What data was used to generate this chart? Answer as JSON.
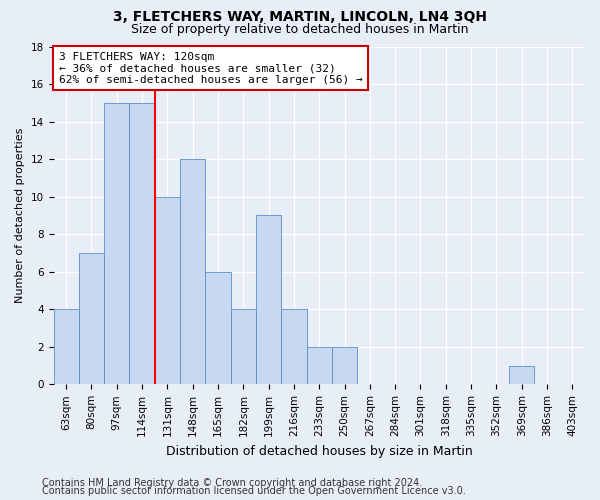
{
  "title": "3, FLETCHERS WAY, MARTIN, LINCOLN, LN4 3QH",
  "subtitle": "Size of property relative to detached houses in Martin",
  "xlabel": "Distribution of detached houses by size in Martin",
  "ylabel": "Number of detached properties",
  "categories": [
    "63sqm",
    "80sqm",
    "97sqm",
    "114sqm",
    "131sqm",
    "148sqm",
    "165sqm",
    "182sqm",
    "199sqm",
    "216sqm",
    "233sqm",
    "250sqm",
    "267sqm",
    "284sqm",
    "301sqm",
    "318sqm",
    "335sqm",
    "352sqm",
    "369sqm",
    "386sqm",
    "403sqm"
  ],
  "values": [
    4,
    7,
    15,
    15,
    10,
    12,
    6,
    4,
    9,
    4,
    2,
    2,
    0,
    0,
    0,
    0,
    0,
    0,
    1,
    0,
    0
  ],
  "bar_color": "#c6d9f0",
  "bar_edge_color": "#5b8dc8",
  "red_line_x": 3.5,
  "annotation_line1": "3 FLETCHERS WAY: 120sqm",
  "annotation_line2": "← 36% of detached houses are smaller (32)",
  "annotation_line3": "62% of semi-detached houses are larger (56) →",
  "annotation_box_color": "white",
  "annotation_box_edge_color": "#cc0000",
  "ylim": [
    0,
    18
  ],
  "yticks": [
    0,
    2,
    4,
    6,
    8,
    10,
    12,
    14,
    16,
    18
  ],
  "footer_line1": "Contains HM Land Registry data © Crown copyright and database right 2024.",
  "footer_line2": "Contains public sector information licensed under the Open Government Licence v3.0.",
  "background_color": "#e8eef8",
  "plot_background_color": "#e8eef8",
  "title_fontsize": 10,
  "subtitle_fontsize": 9,
  "annotation_fontsize": 8,
  "footer_fontsize": 7,
  "grid_color": "white",
  "tick_fontsize": 7.5,
  "ylabel_fontsize": 8,
  "xlabel_fontsize": 9
}
